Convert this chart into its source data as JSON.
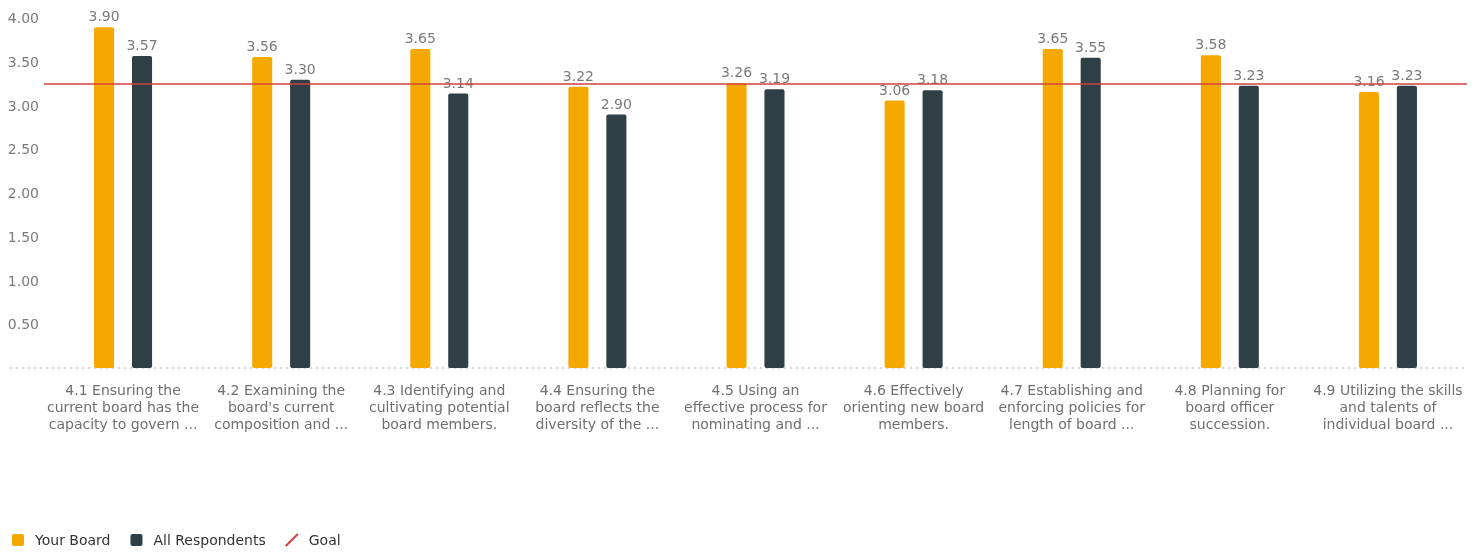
{
  "chart_data": {
    "type": "bar",
    "categories": [
      "4.1 Ensuring the current board has the capacity to govern ...",
      "4.2 Examining the board's current composition and ...",
      "4.3 Identifying and cultivating potential board members.",
      "4.4 Ensuring the board reflects the diversity of the ...",
      "4.5 Using an effective process for nominating and ...",
      "4.6 Effectively orienting new board members.",
      "4.7 Establishing and enforcing policies for length of board ...",
      "4.8 Planning for board officer succession.",
      "4.9 Utilizing the skills and talents of individual board ..."
    ],
    "series": [
      {
        "name": "Your Board",
        "color": "#f5a900",
        "values": [
          3.9,
          3.56,
          3.65,
          3.22,
          3.26,
          3.06,
          3.65,
          3.58,
          3.16
        ],
        "value_labels": [
          "3.90",
          "3.56",
          "3.65",
          "3.22",
          "3.26",
          "3.06",
          "3.65",
          "3.58",
          "3.16"
        ]
      },
      {
        "name": "All Respondents",
        "color": "#2e3f45",
        "values": [
          3.57,
          3.3,
          3.14,
          2.9,
          3.19,
          3.18,
          3.55,
          3.23,
          3.23
        ],
        "value_labels": [
          "3.57",
          "3.30",
          "3.14",
          "2.90",
          "3.19",
          "3.18",
          "3.55",
          "3.23",
          "3.23"
        ]
      }
    ],
    "ylim": [
      0,
      4.2
    ],
    "yticks": [
      {
        "value": 0.5,
        "label": "0.50"
      },
      {
        "value": 1,
        "label": "1.00"
      },
      {
        "value": 1.5,
        "label": "1.50"
      },
      {
        "value": 2,
        "label": "2.00"
      },
      {
        "value": 2.5,
        "label": "2.50"
      },
      {
        "value": 3,
        "label": "3.00"
      },
      {
        "value": 3.5,
        "label": "3.50"
      },
      {
        "value": 4,
        "label": "4.00"
      }
    ],
    "ref_lines": [
      {
        "axis": "y",
        "value": 3.25,
        "label": "Goal",
        "color": "#d2403f"
      }
    ],
    "legend": "bottom left"
  }
}
